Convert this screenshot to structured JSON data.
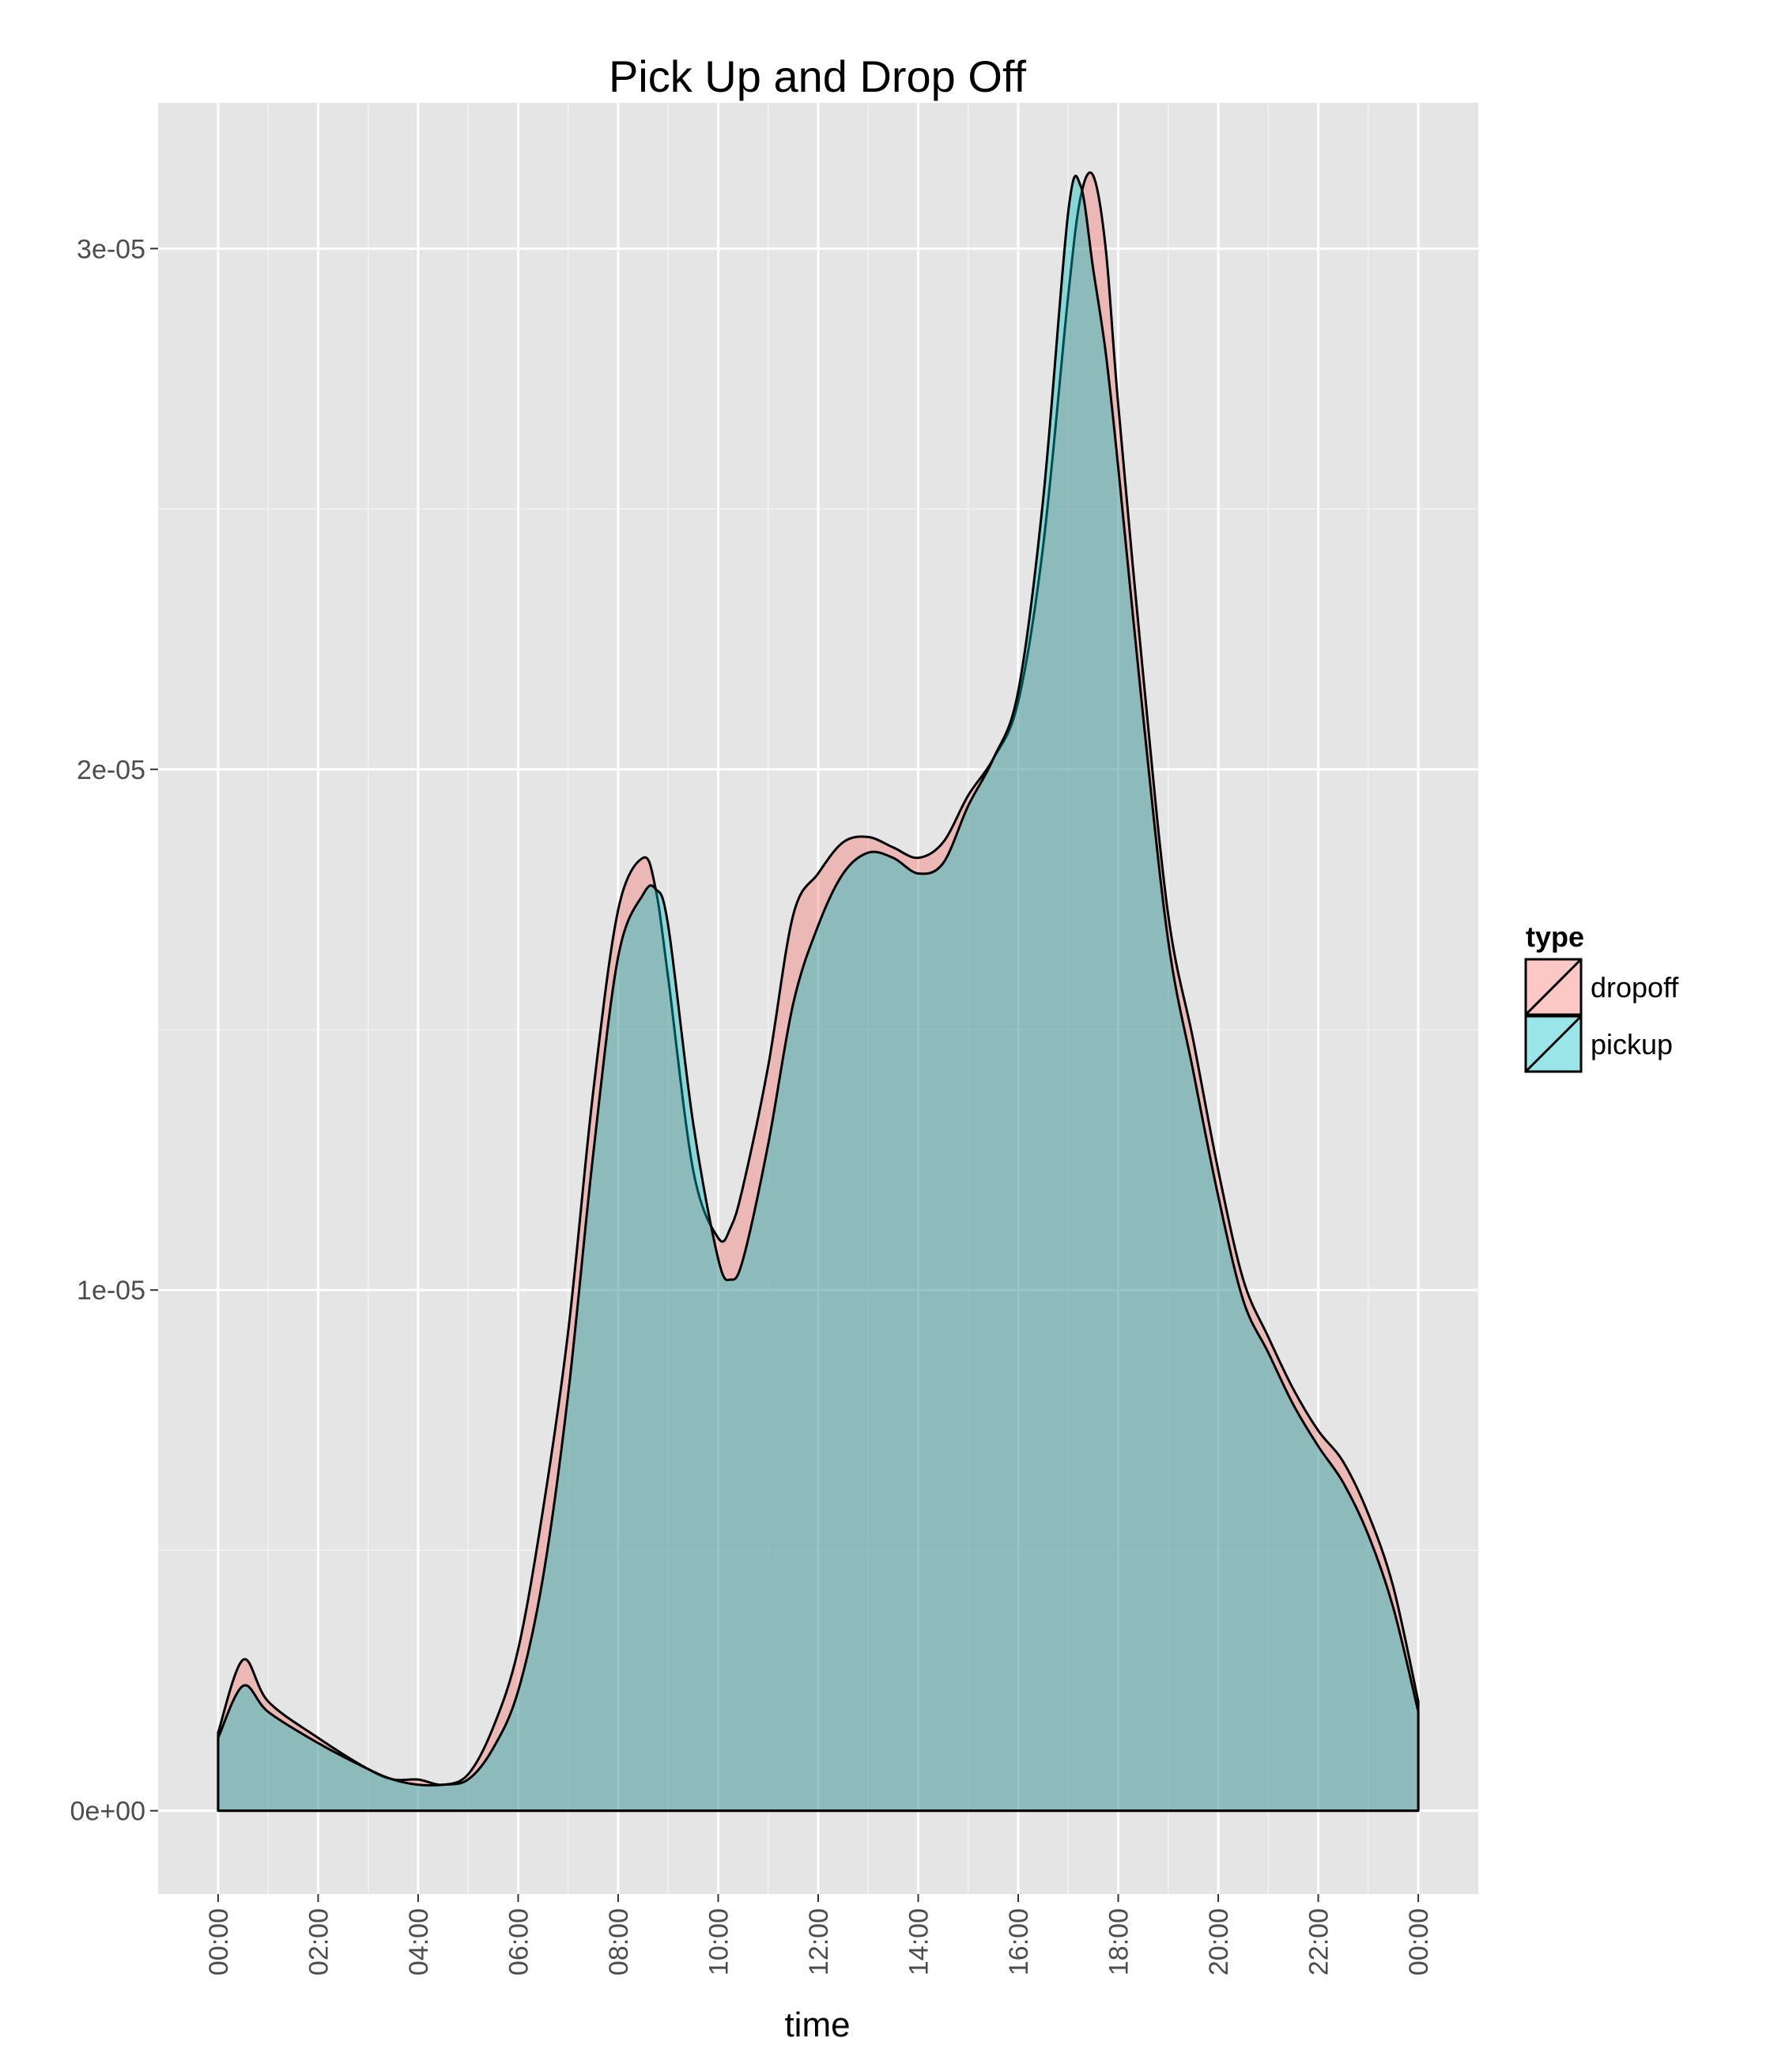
{
  "chart_data": {
    "type": "area",
    "title": "Pick Up and Drop Off",
    "xlabel": "time",
    "ylabel": "",
    "x_unit": "hour of day",
    "xlim": [
      -1.2,
      25.2
    ],
    "ylim": [
      -1.6e-06,
      3.28e-05
    ],
    "x_ticks": [
      0,
      2,
      4,
      6,
      8,
      10,
      12,
      14,
      16,
      18,
      20,
      22,
      24
    ],
    "x_tick_labels": [
      "00:00",
      "02:00",
      "04:00",
      "06:00",
      "08:00",
      "10:00",
      "12:00",
      "14:00",
      "16:00",
      "18:00",
      "20:00",
      "22:00",
      "00:00"
    ],
    "y_ticks": [
      0,
      1e-05,
      2e-05,
      3e-05
    ],
    "y_tick_labels": [
      "0e+00",
      "1e-05",
      "2e-05",
      "3e-05"
    ],
    "grid": true,
    "background": "#e5e5e5",
    "legend": {
      "title": "type",
      "position": "right"
    },
    "x": [
      0,
      0.5,
      1,
      2,
      3,
      3.5,
      4,
      4.5,
      5,
      5.5,
      6,
      6.5,
      7,
      7.5,
      8,
      8.5,
      8.75,
      9,
      9.5,
      10,
      10.25,
      10.5,
      11,
      11.5,
      12,
      12.5,
      13,
      13.5,
      14,
      14.5,
      15,
      15.5,
      16,
      16.5,
      17,
      17.25,
      17.5,
      17.75,
      18,
      18.5,
      19,
      19.5,
      20,
      20.5,
      21,
      21.5,
      22,
      22.5,
      23,
      23.5,
      24
    ],
    "series": [
      {
        "name": "dropoff",
        "color": "#f8766d",
        "values": [
          1.5e-06,
          2.9e-06,
          2.1e-06,
          1.4e-06,
          8e-07,
          6e-07,
          6e-07,
          5e-07,
          7e-07,
          1.6e-06,
          3.1e-06,
          5.8e-06,
          9.2e-06,
          1.38e-05,
          1.73e-05,
          1.83e-05,
          1.77e-05,
          1.6e-05,
          1.23e-05,
          1.1e-05,
          1.12e-05,
          1.2e-05,
          1.43e-05,
          1.72e-05,
          1.8e-05,
          1.86e-05,
          1.87e-05,
          1.85e-05,
          1.83e-05,
          1.86e-05,
          1.95e-05,
          2.02e-05,
          2.13e-05,
          2.43e-05,
          2.91e-05,
          3.1e-05,
          3.14e-05,
          3e-05,
          2.7e-05,
          2.18e-05,
          1.72e-05,
          1.48e-05,
          1.23e-05,
          1.02e-05,
          9.1e-06,
          8.1e-06,
          7.3e-06,
          6.7e-06,
          5.7e-06,
          4.3e-06,
          2.1e-06
        ]
      },
      {
        "name": "pickup",
        "color": "#00bfc4",
        "values": [
          1.4e-06,
          2.4e-06,
          1.9e-06,
          1.3e-06,
          8e-07,
          6e-07,
          5e-07,
          5e-07,
          6e-07,
          1.2e-06,
          2.3e-06,
          4.5e-06,
          8e-06,
          1.26e-05,
          1.64e-05,
          1.76e-05,
          1.77e-05,
          1.7e-05,
          1.32e-05,
          1.06e-05,
          1.02e-05,
          1.06e-05,
          1.28e-05,
          1.55e-05,
          1.7e-05,
          1.8e-05,
          1.84e-05,
          1.83e-05,
          1.8e-05,
          1.82e-05,
          1.93e-05,
          2.02e-05,
          2.15e-05,
          2.52e-05,
          3.07e-05,
          3.12e-05,
          2.96e-05,
          2.8e-05,
          2.58e-05,
          2.1e-05,
          1.67e-05,
          1.42e-05,
          1.18e-05,
          9.8e-06,
          8.8e-06,
          7.8e-06,
          7e-06,
          6.3e-06,
          5.3e-06,
          3.9e-06,
          1.9e-06
        ]
      }
    ]
  }
}
